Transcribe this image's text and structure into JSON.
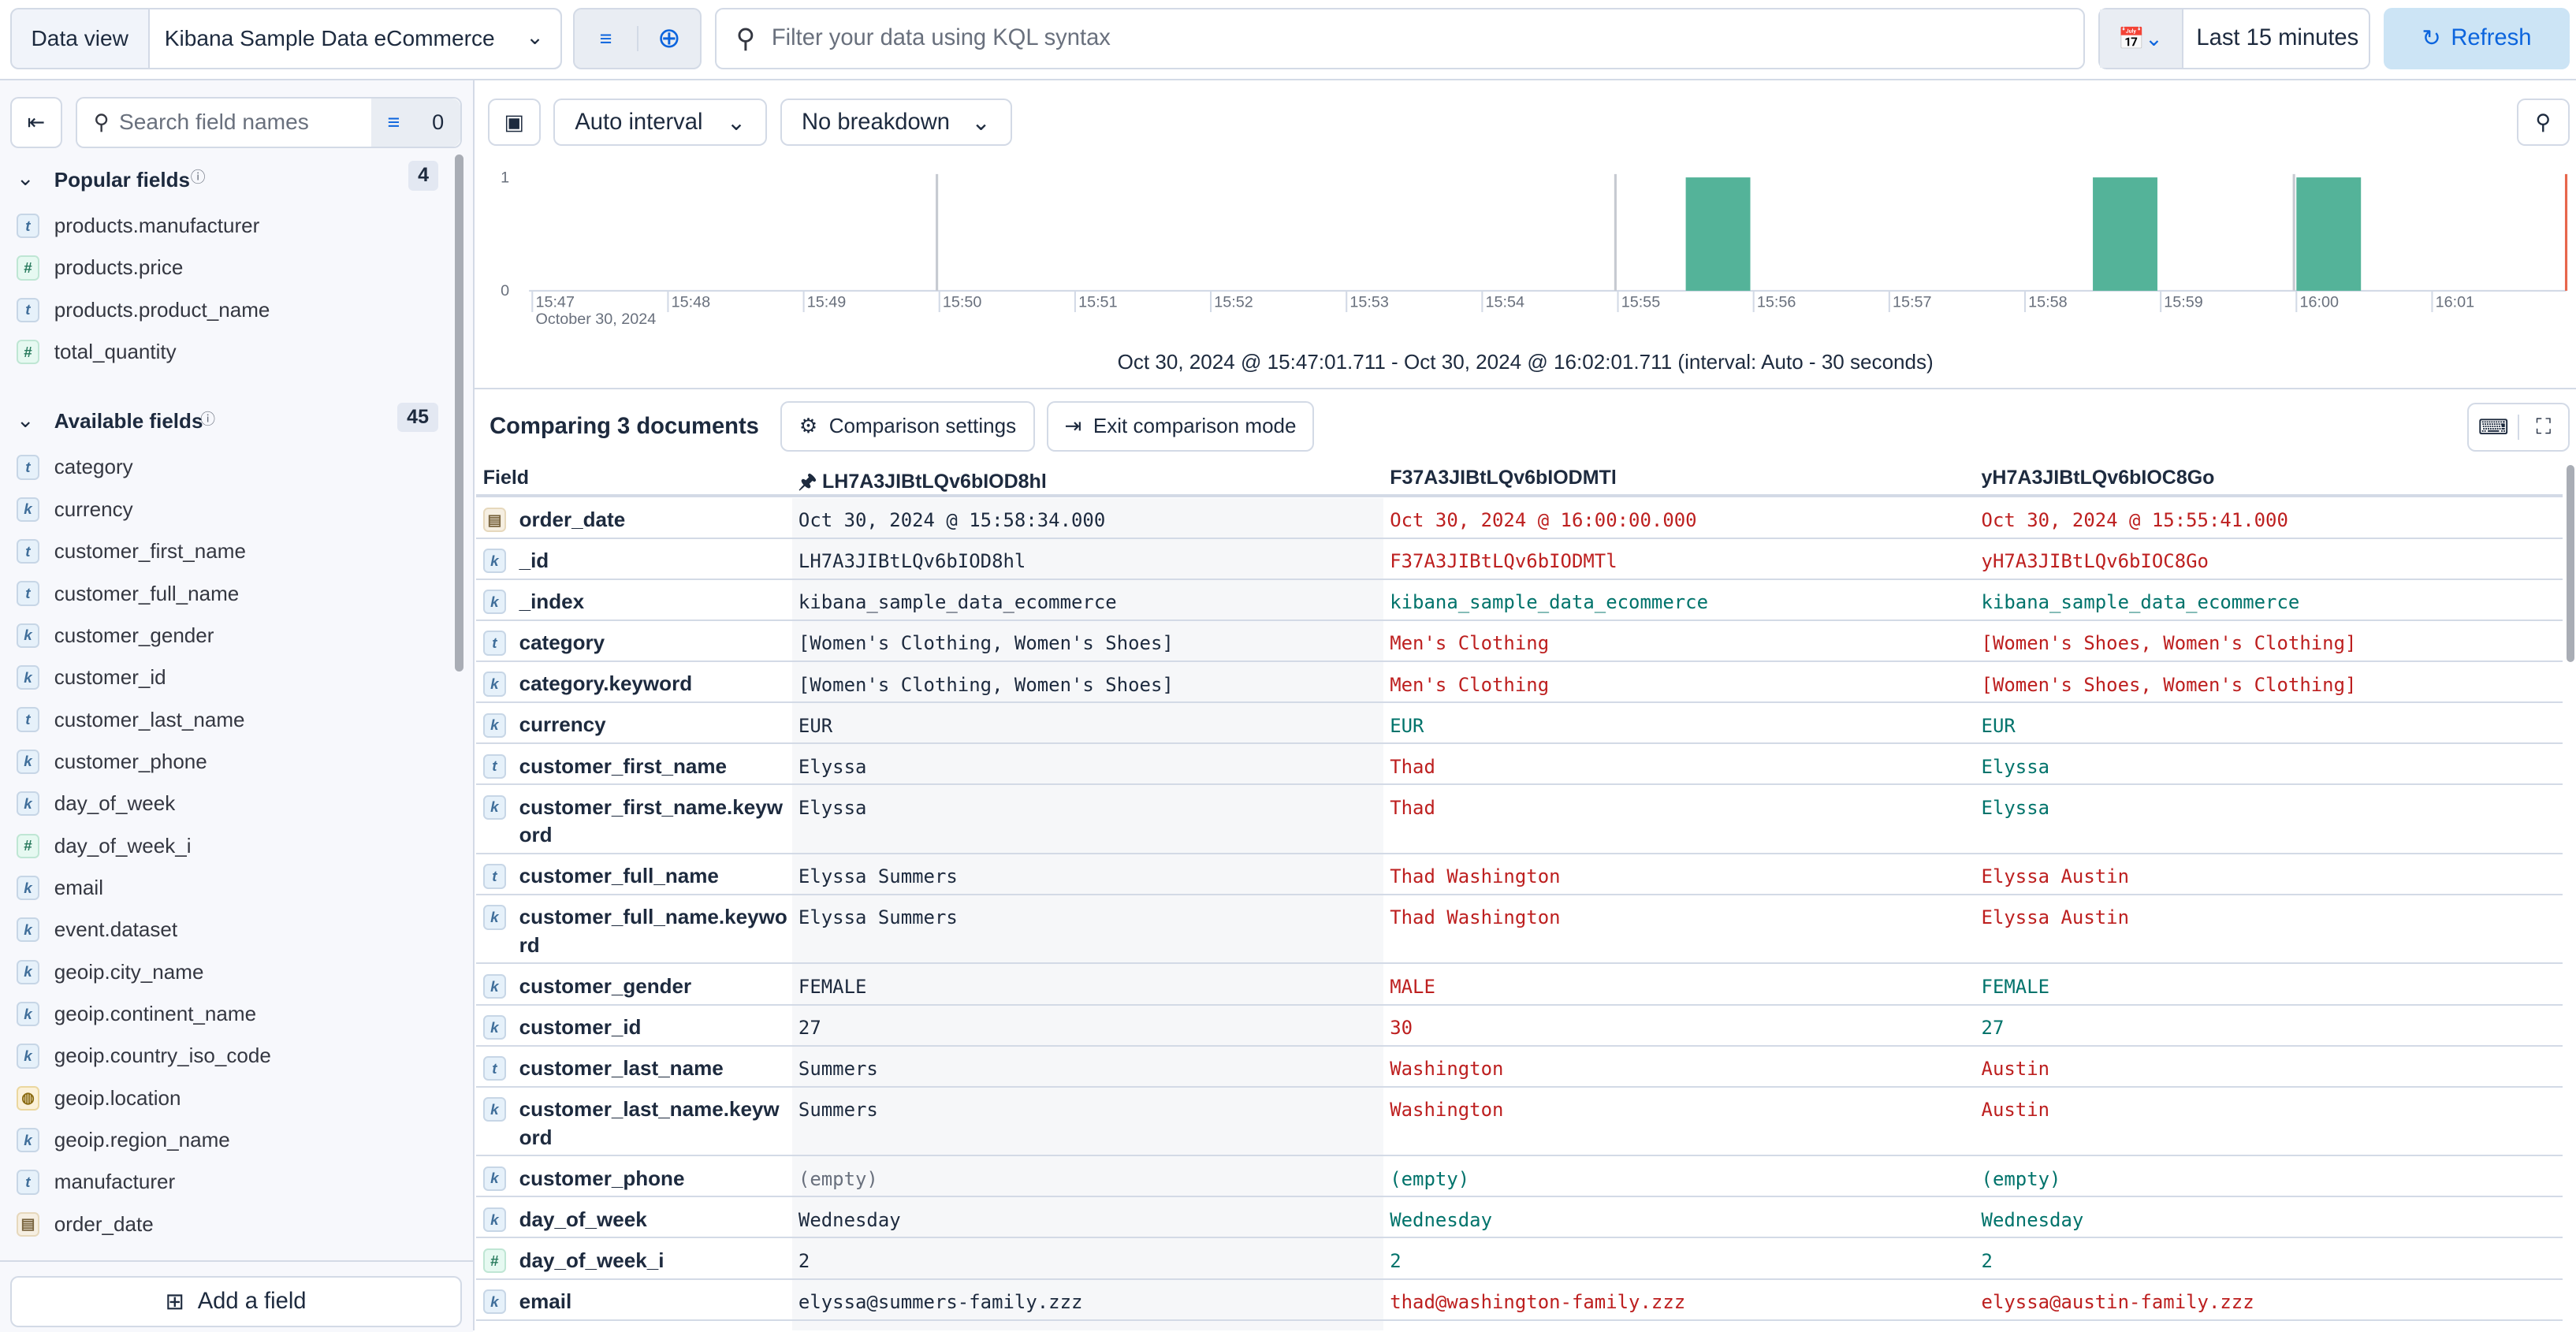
{
  "topbar": {
    "data_view_label": "Data view",
    "data_view": "Kibana Sample Data eCommerce",
    "query_placeholder": "Filter your data using KQL syntax",
    "time_range": "Last 15 minutes",
    "refresh": "Refresh"
  },
  "sidebar": {
    "search_placeholder": "Search field names",
    "filter_count": "0",
    "popular": {
      "title": "Popular fields",
      "count": "4",
      "items": [
        {
          "type": "t",
          "name": "products.manufacturer"
        },
        {
          "type": "#",
          "name": "products.price"
        },
        {
          "type": "t",
          "name": "products.product_name"
        },
        {
          "type": "#",
          "name": "total_quantity"
        }
      ]
    },
    "available": {
      "title": "Available fields",
      "count": "45",
      "items": [
        {
          "type": "t",
          "name": "category"
        },
        {
          "type": "k",
          "name": "currency"
        },
        {
          "type": "t",
          "name": "customer_first_name"
        },
        {
          "type": "t",
          "name": "customer_full_name"
        },
        {
          "type": "k",
          "name": "customer_gender"
        },
        {
          "type": "k",
          "name": "customer_id"
        },
        {
          "type": "t",
          "name": "customer_last_name"
        },
        {
          "type": "k",
          "name": "customer_phone"
        },
        {
          "type": "k",
          "name": "day_of_week"
        },
        {
          "type": "#",
          "name": "day_of_week_i"
        },
        {
          "type": "k",
          "name": "email"
        },
        {
          "type": "k",
          "name": "event.dataset"
        },
        {
          "type": "k",
          "name": "geoip.city_name"
        },
        {
          "type": "k",
          "name": "geoip.continent_name"
        },
        {
          "type": "k",
          "name": "geoip.country_iso_code"
        },
        {
          "type": "geo",
          "name": "geoip.location"
        },
        {
          "type": "k",
          "name": "geoip.region_name"
        },
        {
          "type": "t",
          "name": "manufacturer"
        },
        {
          "type": "date",
          "name": "order_date"
        }
      ]
    },
    "add_field": "Add a field"
  },
  "histogram": {
    "interval": "Auto interval",
    "breakdown": "No breakdown",
    "date_label": "October 30, 2024",
    "range_label": "Oct 30, 2024 @ 15:47:01.711 - Oct 30, 2024 @ 16:02:01.711 (interval: Auto - 30 seconds)",
    "bar_color": "#54b399"
  },
  "chart_data": {
    "type": "bar",
    "x_ticks": [
      "15:47",
      "15:48",
      "15:49",
      "15:50",
      "15:51",
      "15:52",
      "15:53",
      "15:54",
      "15:55",
      "15:56",
      "15:57",
      "15:58",
      "15:59",
      "16:00",
      "16:01"
    ],
    "y_ticks": [
      "0",
      "1"
    ],
    "ylim": [
      0,
      1
    ],
    "bars": [
      {
        "x": "15:55:30",
        "value": 1
      },
      {
        "x": "15:58:30",
        "value": 1
      },
      {
        "x": "16:00:00",
        "value": 1
      }
    ]
  },
  "comparison": {
    "title": "Comparing 3 documents",
    "settings": "Comparison settings",
    "exit": "Exit comparison mode",
    "field_header": "Field",
    "docs": [
      "LH7A3JIBtLQv6bIOD8hl",
      "F37A3JIBtLQv6bIODMTl",
      "yH7A3JIBtLQv6bIOC8Go"
    ],
    "rows": [
      {
        "type": "date",
        "field": "order_date",
        "values": [
          "Oct 30, 2024 @ 15:58:34.000",
          "Oct 30, 2024 @ 16:00:00.000",
          "Oct 30, 2024 @ 15:55:41.000"
        ],
        "diff": [
          true,
          true
        ]
      },
      {
        "type": "k",
        "field": "_id",
        "values": [
          "LH7A3JIBtLQv6bIOD8hl",
          "F37A3JIBtLQv6bIODMTl",
          "yH7A3JIBtLQv6bIOC8Go"
        ],
        "diff": [
          true,
          true
        ]
      },
      {
        "type": "k",
        "field": "_index",
        "values": [
          "kibana_sample_data_ecommerce",
          "kibana_sample_data_ecommerce",
          "kibana_sample_data_ecommerce"
        ],
        "diff": [
          false,
          false
        ]
      },
      {
        "type": "t",
        "field": "category",
        "values": [
          "[Women's Clothing, Women's Shoes]",
          "Men's Clothing",
          "[Women's Shoes, Women's Clothing]"
        ],
        "diff": [
          true,
          true
        ]
      },
      {
        "type": "k",
        "field": "category.keyword",
        "values": [
          "[Women's Clothing, Women's Shoes]",
          "Men's Clothing",
          "[Women's Shoes, Women's Clothing]"
        ],
        "diff": [
          true,
          true
        ]
      },
      {
        "type": "k",
        "field": "currency",
        "values": [
          "EUR",
          "EUR",
          "EUR"
        ],
        "diff": [
          false,
          false
        ]
      },
      {
        "type": "t",
        "field": "customer_first_name",
        "values": [
          "Elyssa",
          "Thad",
          "Elyssa"
        ],
        "diff": [
          true,
          false
        ]
      },
      {
        "type": "k",
        "field": "customer_first_name.keyword",
        "values": [
          "Elyssa",
          "Thad",
          "Elyssa"
        ],
        "diff": [
          true,
          false
        ]
      },
      {
        "type": "t",
        "field": "customer_full_name",
        "values": [
          "Elyssa Summers",
          "Thad Washington",
          "Elyssa Austin"
        ],
        "diff": [
          true,
          true
        ]
      },
      {
        "type": "k",
        "field": "customer_full_name.keyword",
        "values": [
          "Elyssa Summers",
          "Thad Washington",
          "Elyssa Austin"
        ],
        "diff": [
          true,
          true
        ]
      },
      {
        "type": "k",
        "field": "customer_gender",
        "values": [
          "FEMALE",
          "MALE",
          "FEMALE"
        ],
        "diff": [
          true,
          false
        ]
      },
      {
        "type": "k",
        "field": "customer_id",
        "values": [
          "27",
          "30",
          "27"
        ],
        "diff": [
          true,
          false
        ]
      },
      {
        "type": "t",
        "field": "customer_last_name",
        "values": [
          "Summers",
          "Washington",
          "Austin"
        ],
        "diff": [
          true,
          true
        ]
      },
      {
        "type": "k",
        "field": "customer_last_name.keyword",
        "values": [
          "Summers",
          "Washington",
          "Austin"
        ],
        "diff": [
          true,
          true
        ]
      },
      {
        "type": "k",
        "field": "customer_phone",
        "values": [
          "(empty)",
          "(empty)",
          "(empty)"
        ],
        "diff": [
          false,
          false
        ]
      },
      {
        "type": "k",
        "field": "day_of_week",
        "values": [
          "Wednesday",
          "Wednesday",
          "Wednesday"
        ],
        "diff": [
          false,
          false
        ]
      },
      {
        "type": "#",
        "field": "day_of_week_i",
        "values": [
          "2",
          "2",
          "2"
        ],
        "diff": [
          false,
          false
        ]
      },
      {
        "type": "k",
        "field": "email",
        "values": [
          "elyssa@summers-family.zzz",
          "thad@washington-family.zzz",
          "elyssa@austin-family.zzz"
        ],
        "diff": [
          true,
          true
        ]
      }
    ]
  }
}
